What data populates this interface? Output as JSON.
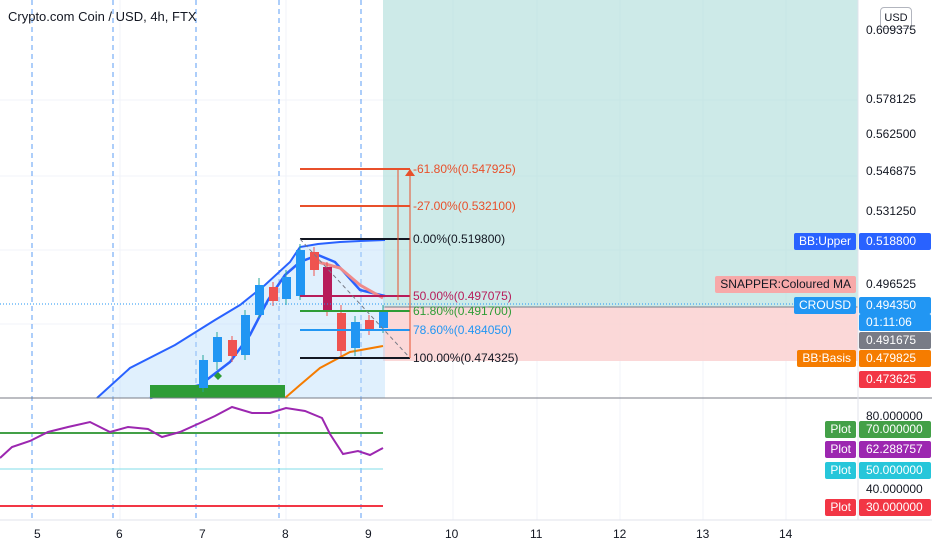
{
  "header": {
    "title": "Crypto.com Coin / USD, 4h, FTX",
    "currency_button": "USD"
  },
  "price_axis": {
    "ticks": [
      "0.609375",
      "0.578125",
      "0.562500",
      "0.546875",
      "0.531250"
    ]
  },
  "rsi_axis": {
    "ticks": [
      "80.000000",
      "40.000000"
    ]
  },
  "time_axis": {
    "ticks": [
      "5",
      "6",
      "7",
      "8",
      "9",
      "10",
      "11",
      "12",
      "13",
      "14"
    ]
  },
  "fib_levels": [
    {
      "label": "-61.80%(0.547925)",
      "color": "#e8502b"
    },
    {
      "label": "-27.00%(0.532100)",
      "color": "#e8502b"
    },
    {
      "label": "0.00%(0.519800)",
      "color": "#131722"
    },
    {
      "label": "50.00%(0.497075)",
      "color": "#b71c5a"
    },
    {
      "label": "61.80%(0.491700)",
      "color": "#2e9c36"
    },
    {
      "label": "78.60%(0.484050)",
      "color": "#2196f3"
    },
    {
      "label": "100.00%(0.474325)",
      "color": "#131722"
    }
  ],
  "price_tags": {
    "bb_upper": {
      "name": "BB:Upper",
      "value": "0.518800",
      "color": "#2962ff"
    },
    "snapper": {
      "name": "SNAPPER:Coloured MA",
      "value": "0.496525",
      "color": "#ef5350"
    },
    "crousd": {
      "name": "CROUSD",
      "value": "0.494350",
      "countdown": "01:11:06",
      "color": "#2196f3"
    },
    "stop_level": {
      "value": "0.491675",
      "color": "#787b86"
    },
    "bb_basis": {
      "name": "BB:Basis",
      "value": "0.479825",
      "color": "#f57c00"
    },
    "target_level": {
      "value": "0.473625",
      "color": "#f23645"
    }
  },
  "rsi_tags": [
    {
      "name": "Plot",
      "value": "70.000000",
      "color": "#43a047"
    },
    {
      "name": "Plot",
      "value": "62.288757",
      "color": "#9c27b0"
    },
    {
      "name": "Plot",
      "value": "50.000000",
      "color": "#26c6da"
    },
    {
      "name": "Plot",
      "value": "30.000000",
      "color": "#f23645"
    }
  ]
}
